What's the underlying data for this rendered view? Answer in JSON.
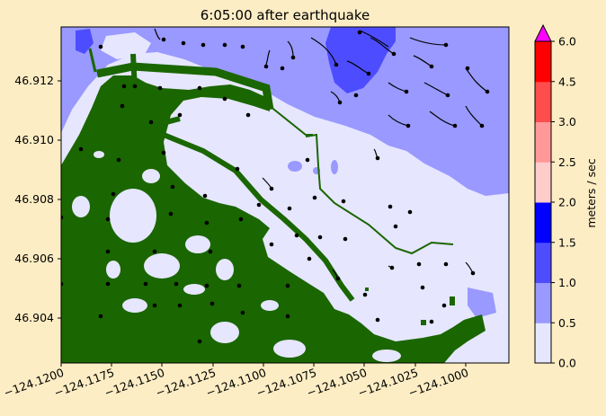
{
  "title": "6:05:00 after earthquake",
  "x_ticks": [
    "−124.1200",
    "−124.1175",
    "−124.1150",
    "−124.1125",
    "−124.1100",
    "−124.1075",
    "−124.1050",
    "−124.1025",
    "−124.1000"
  ],
  "y_ticks": [
    "46.904",
    "46.906",
    "46.908",
    "46.910",
    "46.912"
  ],
  "colorbar": {
    "label": "meters / sec",
    "ticks": [
      "0.0",
      "0.5",
      "1.0",
      "1.5",
      "2.0",
      "2.5",
      "3.0",
      "4.5",
      "6.0"
    ],
    "colors": [
      "#e6e6ff",
      "#9999ff",
      "#4d4dff",
      "#0000ff",
      "#ffcccc",
      "#ff9999",
      "#ff4d4d",
      "#ff0000"
    ],
    "extend_color": "#ff00ff"
  },
  "colors": {
    "land": "#1a6600",
    "water_low": "#e6e6ff",
    "water_mid": "#9999ff",
    "water_high": "#4d4dff"
  },
  "chart_data": {
    "type": "heatmap",
    "quantity": "flow speed",
    "xlim": [
      -124.12,
      -124.0977
    ],
    "ylim": [
      46.9026,
      46.9138
    ],
    "x_ticks_values": [
      -124.12,
      -124.1175,
      -124.115,
      -124.1125,
      -124.11,
      -124.1075,
      -124.105,
      -124.1025,
      -124.1
    ],
    "y_ticks_values": [
      46.904,
      46.906,
      46.908,
      46.91,
      46.912
    ],
    "levels": [
      0.0,
      0.5,
      1.0,
      1.5,
      2.0,
      2.5,
      3.0,
      4.5,
      6.0
    ]
  }
}
